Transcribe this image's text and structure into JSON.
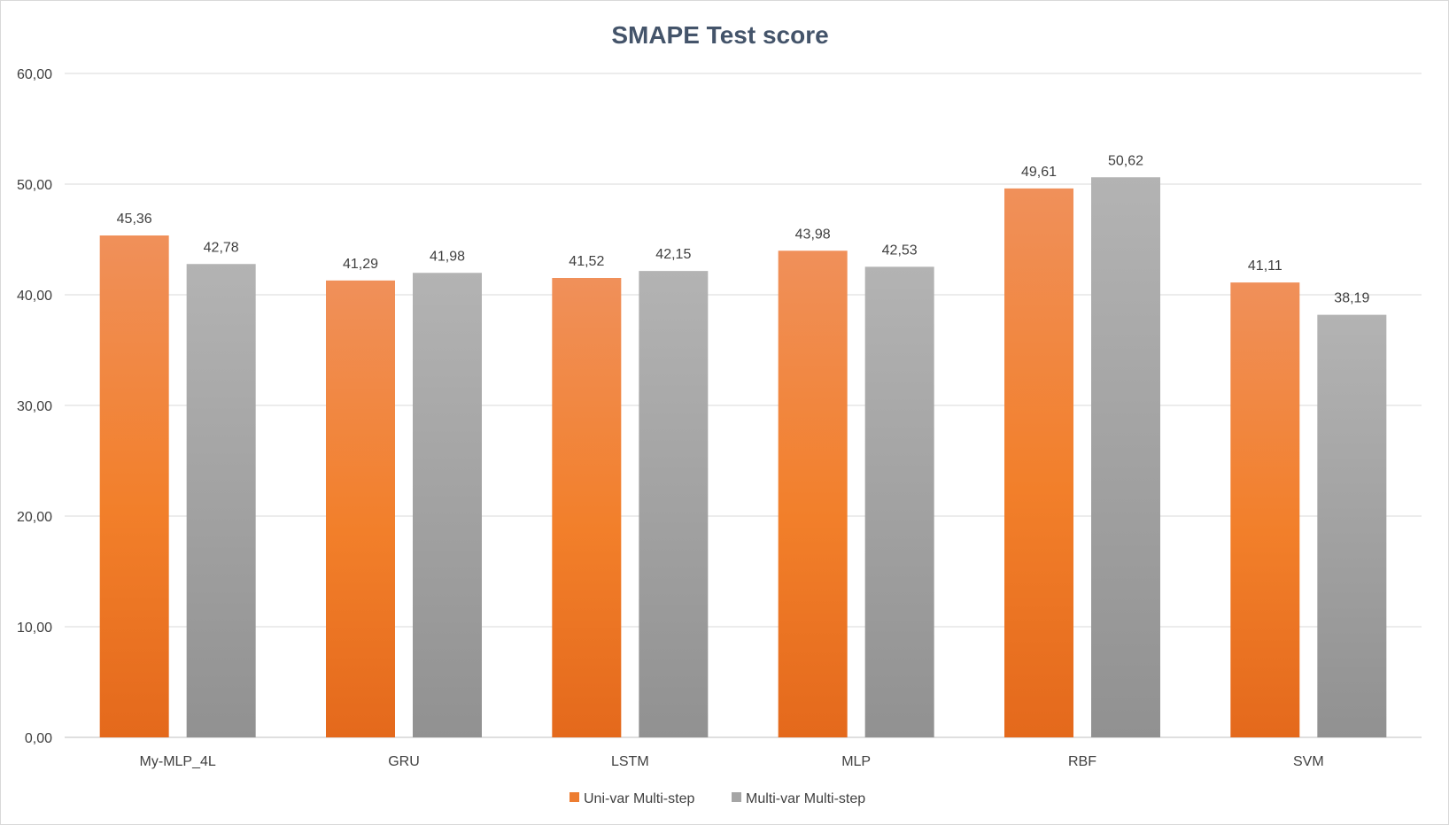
{
  "chart_data": {
    "type": "bar",
    "title": "SMAPE Test score",
    "categories": [
      "My-MLP_4L",
      "GRU",
      "LSTM",
      "MLP",
      "RBF",
      "SVM"
    ],
    "series": [
      {
        "name": "Uni-var Multi-step",
        "color": "#ed7d31",
        "values": [
          45.36,
          41.29,
          41.52,
          43.98,
          49.61,
          41.11
        ],
        "labels": [
          "45,36",
          "41,29",
          "41,52",
          "43,98",
          "49,61",
          "41,11"
        ]
      },
      {
        "name": "Multi-var Multi-step",
        "color": "#a5a5a5",
        "values": [
          42.78,
          41.98,
          42.15,
          42.53,
          50.62,
          38.19
        ],
        "labels": [
          "42,78",
          "41,98",
          "42,15",
          "42,53",
          "50,62",
          "38,19"
        ]
      }
    ],
    "y_ticks": [
      "0,00",
      "10,00",
      "20,00",
      "30,00",
      "40,00",
      "50,00",
      "60,00"
    ],
    "ylim": [
      0,
      60
    ],
    "grid": true,
    "legend_position": "bottom"
  }
}
